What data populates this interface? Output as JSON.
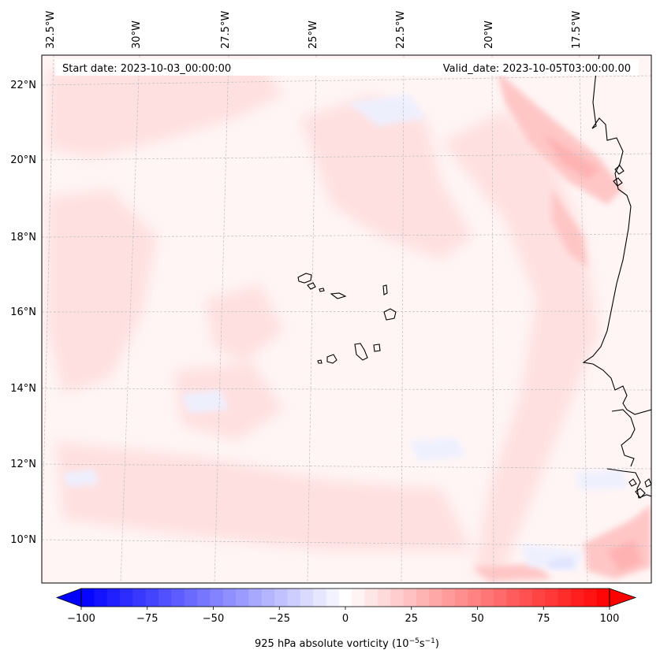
{
  "map": {
    "start_date": "Start date: 2023-10-03_00:00:00",
    "valid_date": "Valid_date: 2023-10-05T03:00:00.00",
    "lon_labels": [
      "32.5°W",
      "30°W",
      "27.5°W",
      "25°W",
      "22.5°W",
      "20°W",
      "17.5°W"
    ],
    "lat_labels": [
      "22°N",
      "20°N",
      "18°N",
      "16°N",
      "14°N",
      "12°N",
      "10°N"
    ],
    "colors": {
      "background": "#fff5f5",
      "positive_light": "#ffdcdc",
      "positive_mid": "#ffc3c3",
      "negative_light": "#eef0ff",
      "coastline": "#000000",
      "gridline": "#bfbfbf"
    }
  },
  "colorbar": {
    "min": -100,
    "max": 100,
    "levels": 41,
    "ticks": [
      "−100",
      "−75",
      "−50",
      "−25",
      "0",
      "25",
      "50",
      "75",
      "100"
    ],
    "tick_values": [
      -100,
      -75,
      -50,
      -25,
      0,
      25,
      50,
      75,
      100
    ],
    "label_prefix": "925 hPa absolute vorticity (10",
    "label_exp1": "−5",
    "label_mid": "s",
    "label_exp2": "−1",
    "label_suffix": ")",
    "cmap": "bwr"
  }
}
